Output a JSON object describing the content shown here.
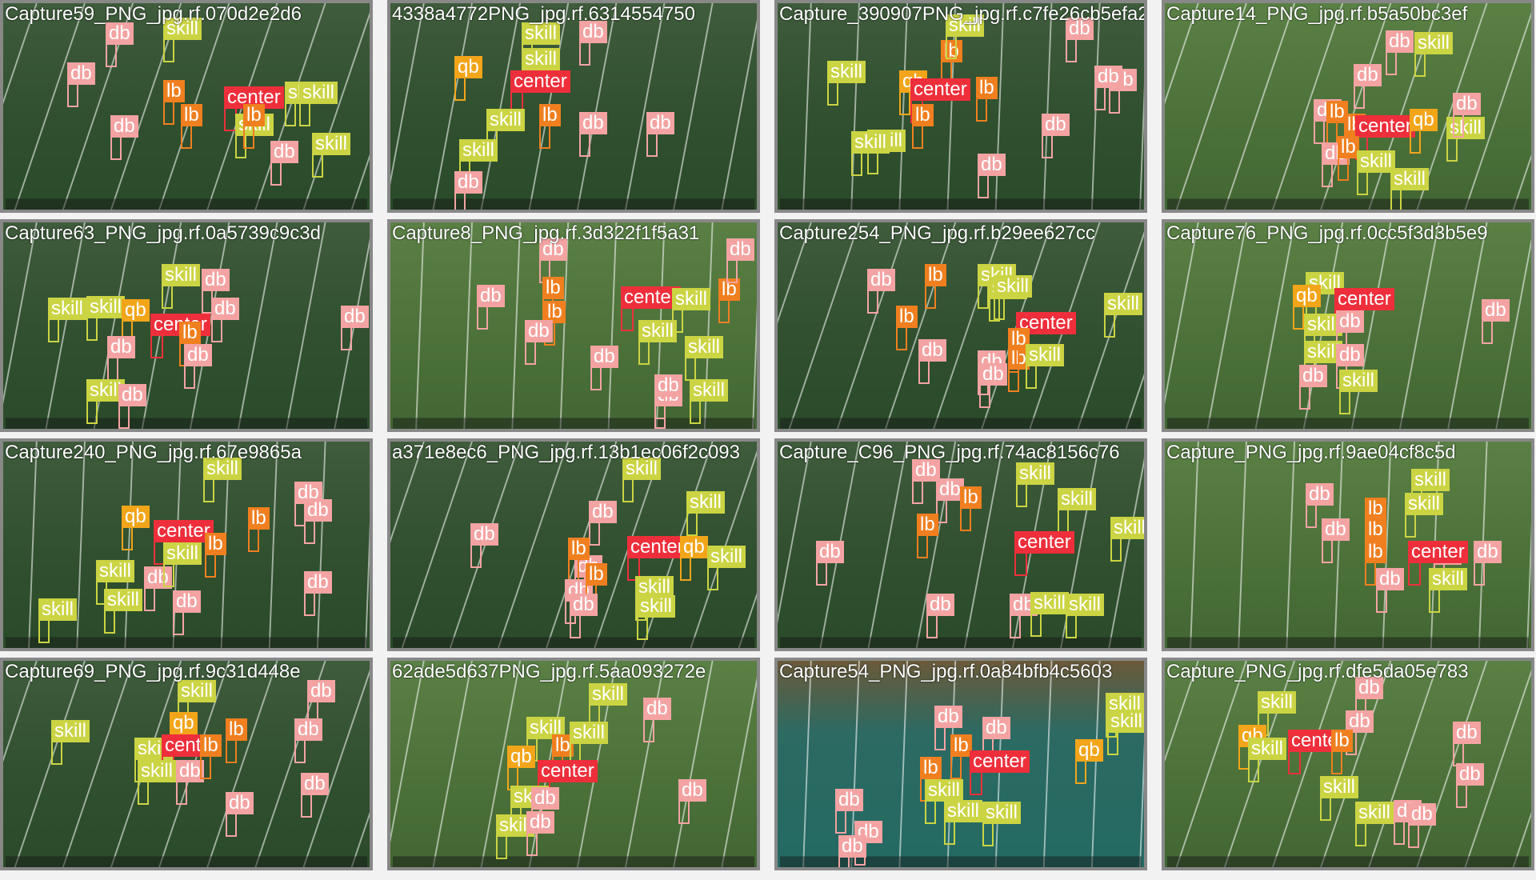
{
  "colors": {
    "db": "#f4a3a3",
    "skill": "#cbd443",
    "lb": "#f07f1f",
    "qb": "#f3a51a",
    "center": "#ee2f3b"
  },
  "tiles": [
    {
      "title": "Capture59_PNG_jpg.rf.070d2e2d6",
      "field": "dark",
      "dets": [
        [
          "db",
          0
        ],
        [
          "skill",
          1
        ],
        [
          "db",
          2
        ],
        [
          "lb",
          3
        ],
        [
          "center",
          4
        ],
        [
          "skill",
          5
        ],
        [
          "lb",
          6
        ],
        [
          "skill",
          7
        ],
        [
          "db",
          8
        ],
        [
          "lb",
          9
        ],
        [
          "db",
          10
        ],
        [
          "skill",
          11
        ],
        [
          "skill",
          12
        ]
      ]
    },
    {
      "title": "4338a4772PNG_jpg.rf.6314554750",
      "field": "dark",
      "dets": [
        [
          "skill",
          0
        ],
        [
          "db",
          1
        ],
        [
          "qb",
          2
        ],
        [
          "skill",
          3
        ],
        [
          "center",
          4
        ],
        [
          "skill",
          5
        ],
        [
          "lb",
          6
        ],
        [
          "db",
          7
        ],
        [
          "skill",
          8
        ],
        [
          "db",
          9
        ],
        [
          "db",
          10
        ]
      ]
    },
    {
      "title": "Capture_390907PNG_jpg.rf.c7fe26cb5efa214e9",
      "field": "dark",
      "dets": [
        [
          "skill",
          0
        ],
        [
          "db",
          1
        ],
        [
          "lb",
          2
        ],
        [
          "skill",
          3
        ],
        [
          "qb",
          4
        ],
        [
          "center",
          5
        ],
        [
          "lb",
          6
        ],
        [
          "db",
          7
        ],
        [
          "skill",
          8
        ],
        [
          "lb",
          9
        ],
        [
          "db",
          10
        ],
        [
          "skill",
          11
        ],
        [
          "db",
          12
        ],
        [
          "db",
          13
        ]
      ]
    },
    {
      "title": "Capture14_PNG_jpg.rf.b5a50bc3ef",
      "field": "light",
      "dets": [
        [
          "db",
          0
        ],
        [
          "skill",
          1
        ],
        [
          "db",
          2
        ],
        [
          "db",
          3
        ],
        [
          "lb",
          4
        ],
        [
          "lb",
          5
        ],
        [
          "center",
          6
        ],
        [
          "qb",
          7
        ],
        [
          "skill",
          8
        ],
        [
          "db",
          9
        ],
        [
          "lb",
          10
        ],
        [
          "skill",
          11
        ],
        [
          "skill",
          12
        ],
        [
          "db",
          13
        ]
      ]
    },
    {
      "title": "Capture63_PNG_jpg.rf.0a5739c9c3d",
      "field": "dark",
      "dets": [
        [
          "skill",
          0
        ],
        [
          "skill",
          1
        ],
        [
          "db",
          2
        ],
        [
          "skill",
          3
        ],
        [
          "qb",
          4
        ],
        [
          "center",
          5
        ],
        [
          "lb",
          6
        ],
        [
          "db",
          7
        ],
        [
          "db",
          8
        ],
        [
          "db",
          9
        ],
        [
          "skill",
          10
        ],
        [
          "db",
          11
        ],
        [
          "db",
          12
        ]
      ]
    },
    {
      "title": "Capture8_PNG_jpg.rf.3d322f1f5a31",
      "field": "light",
      "dets": [
        [
          "db",
          0
        ],
        [
          "db",
          1
        ],
        [
          "lb",
          2
        ],
        [
          "lb",
          3
        ],
        [
          "db",
          4
        ],
        [
          "center",
          5
        ],
        [
          "skill",
          6
        ],
        [
          "lb",
          7
        ],
        [
          "db",
          8
        ],
        [
          "skill",
          9
        ],
        [
          "skill",
          10
        ],
        [
          "db",
          11
        ],
        [
          "skill",
          12
        ],
        [
          "db",
          13
        ],
        [
          "db",
          14
        ]
      ]
    },
    {
      "title": "Capture254_PNG_jpg.rf.b29ee627cc",
      "field": "dark",
      "dets": [
        [
          "db",
          0
        ],
        [
          "lb",
          1
        ],
        [
          "skill",
          2
        ],
        [
          "skill",
          3
        ],
        [
          "lb",
          4
        ],
        [
          "skill",
          5
        ],
        [
          "center",
          6
        ],
        [
          "lb",
          7
        ],
        [
          "db",
          8
        ],
        [
          "lb",
          9
        ],
        [
          "db",
          10
        ],
        [
          "skill",
          11
        ],
        [
          "skill",
          12
        ],
        [
          "db",
          13
        ]
      ]
    },
    {
      "title": "Capture76_PNG_jpg.rf.0cc5f3d3b5e9",
      "field": "light",
      "dets": [
        [
          "skill",
          0
        ],
        [
          "qb",
          1
        ],
        [
          "center",
          2
        ],
        [
          "skill",
          3
        ],
        [
          "db",
          4
        ],
        [
          "skill",
          5
        ],
        [
          "db",
          6
        ],
        [
          "db",
          7
        ],
        [
          "skill",
          8
        ],
        [
          "db",
          9
        ]
      ]
    },
    {
      "title": "Capture240_PNG_jpg.rf.67e9865a",
      "field": "dark",
      "dets": [
        [
          "skill",
          0
        ],
        [
          "skill",
          1
        ],
        [
          "db",
          2
        ],
        [
          "qb",
          3
        ],
        [
          "center",
          4
        ],
        [
          "lb",
          5
        ],
        [
          "db",
          6
        ],
        [
          "skill",
          7
        ],
        [
          "lb",
          8
        ],
        [
          "skill",
          9
        ],
        [
          "db",
          10
        ],
        [
          "db",
          11
        ],
        [
          "skill",
          12
        ],
        [
          "db",
          13
        ]
      ]
    },
    {
      "title": "a371e8ec6_PNG_jpg.rf.13b1ec06f2c093",
      "field": "dark",
      "dets": [
        [
          "db",
          0
        ],
        [
          "skill",
          1
        ],
        [
          "db",
          2
        ],
        [
          "db",
          3
        ],
        [
          "skill",
          4
        ],
        [
          "lb",
          5
        ],
        [
          "center",
          6
        ],
        [
          "qb",
          7
        ],
        [
          "skill",
          8
        ],
        [
          "db",
          9
        ],
        [
          "lb",
          10
        ],
        [
          "skill",
          11
        ],
        [
          "db",
          12
        ],
        [
          "skill",
          13
        ]
      ]
    },
    {
      "title": "Capture_C96_PNG_jpg.rf.74ac8156c76",
      "field": "dark",
      "dets": [
        [
          "db",
          0
        ],
        [
          "db",
          1
        ],
        [
          "lb",
          2
        ],
        [
          "skill",
          3
        ],
        [
          "skill",
          4
        ],
        [
          "lb",
          5
        ],
        [
          "center",
          6
        ],
        [
          "skill",
          7
        ],
        [
          "db",
          8
        ],
        [
          "db",
          9
        ],
        [
          "skill",
          10
        ],
        [
          "skill",
          11
        ],
        [
          "db",
          12
        ]
      ]
    },
    {
      "title": "Capture_PNG_jpg.rf.9ae04cf8c5d",
      "field": "light",
      "dets": [
        [
          "db",
          0
        ],
        [
          "skill",
          1
        ],
        [
          "db",
          2
        ],
        [
          "lb",
          3
        ],
        [
          "skill",
          4
        ],
        [
          "db",
          5
        ],
        [
          "lb",
          6
        ],
        [
          "lb",
          7
        ],
        [
          "center",
          8
        ],
        [
          "db",
          9
        ],
        [
          "db",
          10
        ],
        [
          "skill",
          11
        ]
      ]
    },
    {
      "title": "Capture69_PNG_jpg.rf.9c31d448e",
      "field": "dark",
      "dets": [
        [
          "skill",
          0
        ],
        [
          "skill",
          1
        ],
        [
          "db",
          2
        ],
        [
          "qb",
          3
        ],
        [
          "skill",
          4
        ],
        [
          "center",
          5
        ],
        [
          "lb",
          6
        ],
        [
          "db",
          7
        ],
        [
          "skill",
          8
        ],
        [
          "db",
          9
        ],
        [
          "lb",
          10
        ],
        [
          "db",
          11
        ],
        [
          "db",
          12
        ]
      ]
    },
    {
      "title": "62ade5d637PNG_jpg.rf.5aa093272e",
      "field": "light",
      "dets": [
        [
          "skill",
          0
        ],
        [
          "db",
          1
        ],
        [
          "skill",
          2
        ],
        [
          "lb",
          3
        ],
        [
          "qb",
          4
        ],
        [
          "skill",
          5
        ],
        [
          "center",
          6
        ],
        [
          "db",
          7
        ],
        [
          "skill",
          8
        ],
        [
          "db",
          9
        ],
        [
          "skill",
          10
        ],
        [
          "db",
          11
        ]
      ]
    },
    {
      "title": "Capture54_PNG_jpg.rf.0a84bfb4c5603",
      "field": "teal",
      "dets": [
        [
          "skill",
          0
        ],
        [
          "db",
          1
        ],
        [
          "skill",
          2
        ],
        [
          "db",
          3
        ],
        [
          "db",
          4
        ],
        [
          "lb",
          5
        ],
        [
          "center",
          6
        ],
        [
          "qb",
          7
        ],
        [
          "skill",
          8
        ],
        [
          "db",
          9
        ],
        [
          "lb",
          10
        ],
        [
          "skill",
          11
        ],
        [
          "skill",
          12
        ],
        [
          "db",
          13
        ]
      ]
    },
    {
      "title": "Capture_PNG_jpg.rf.dfe5da05e783",
      "field": "light",
      "dets": [
        [
          "db",
          0
        ],
        [
          "skill",
          1
        ],
        [
          "db",
          2
        ],
        [
          "db",
          3
        ],
        [
          "qb",
          4
        ],
        [
          "center",
          5
        ],
        [
          "lb",
          6
        ],
        [
          "skill",
          7
        ],
        [
          "db",
          8
        ],
        [
          "skill",
          9
        ],
        [
          "db",
          10
        ],
        [
          "skill",
          11
        ],
        [
          "db",
          12
        ]
      ]
    }
  ]
}
